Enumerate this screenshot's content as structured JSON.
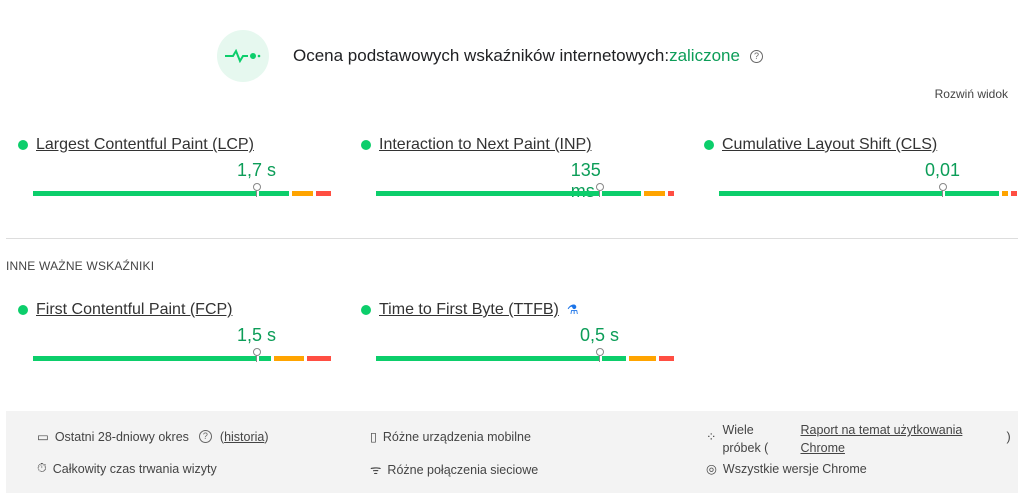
{
  "header": {
    "title": "Ocena podstawowych wskaźników internetowych:",
    "status": "zaliczone",
    "logo_icon": "pulse-icon",
    "help_icon": "help-icon"
  },
  "expand_label": "Rozwiń widok",
  "colors": {
    "good": "#0cce6b",
    "needs_improvement": "#ffa400",
    "poor": "#ff4e42",
    "value": "#0c9d58"
  },
  "core_metrics": [
    {
      "name": "Largest Contentful Paint (LCP)",
      "value": "1,7 s",
      "distribution": [
        87,
        8,
        5
      ],
      "percentile_pct": 75
    },
    {
      "name": "Interaction to Next Paint (INP)",
      "value": "135 ms",
      "distribution": [
        90,
        8,
        2
      ],
      "percentile_pct": 75
    },
    {
      "name": "Cumulative Layout Shift (CLS)",
      "value": "0,01",
      "distribution": [
        95,
        3,
        2
      ],
      "percentile_pct": 75
    }
  ],
  "other_title": "INNE WAŻNE WSKAŹNIKI",
  "other_metrics": [
    {
      "name": "First Contentful Paint (FCP)",
      "value": "1,5 s",
      "distribution": [
        81,
        11,
        8
      ],
      "percentile_pct": 75
    },
    {
      "name": "Time to First Byte (TTFB)",
      "value": "0,5 s",
      "distribution": [
        85,
        10,
        5
      ],
      "percentile_pct": 75,
      "badge_icon": "flask-icon"
    }
  ],
  "footer": {
    "period": "Ostatni 28-dniowy okres",
    "history_link": "historia",
    "duration": "Całkowity czas trwania wizyty",
    "devices": "Różne urządzenia mobilne",
    "connections": "Różne połączenia sieciowe",
    "samples_prefix": "Wiele próbek (",
    "samples_link": "Raport na temat użytkowania Chrome",
    "samples_suffix": ")",
    "versions": "Wszystkie wersje Chrome"
  }
}
